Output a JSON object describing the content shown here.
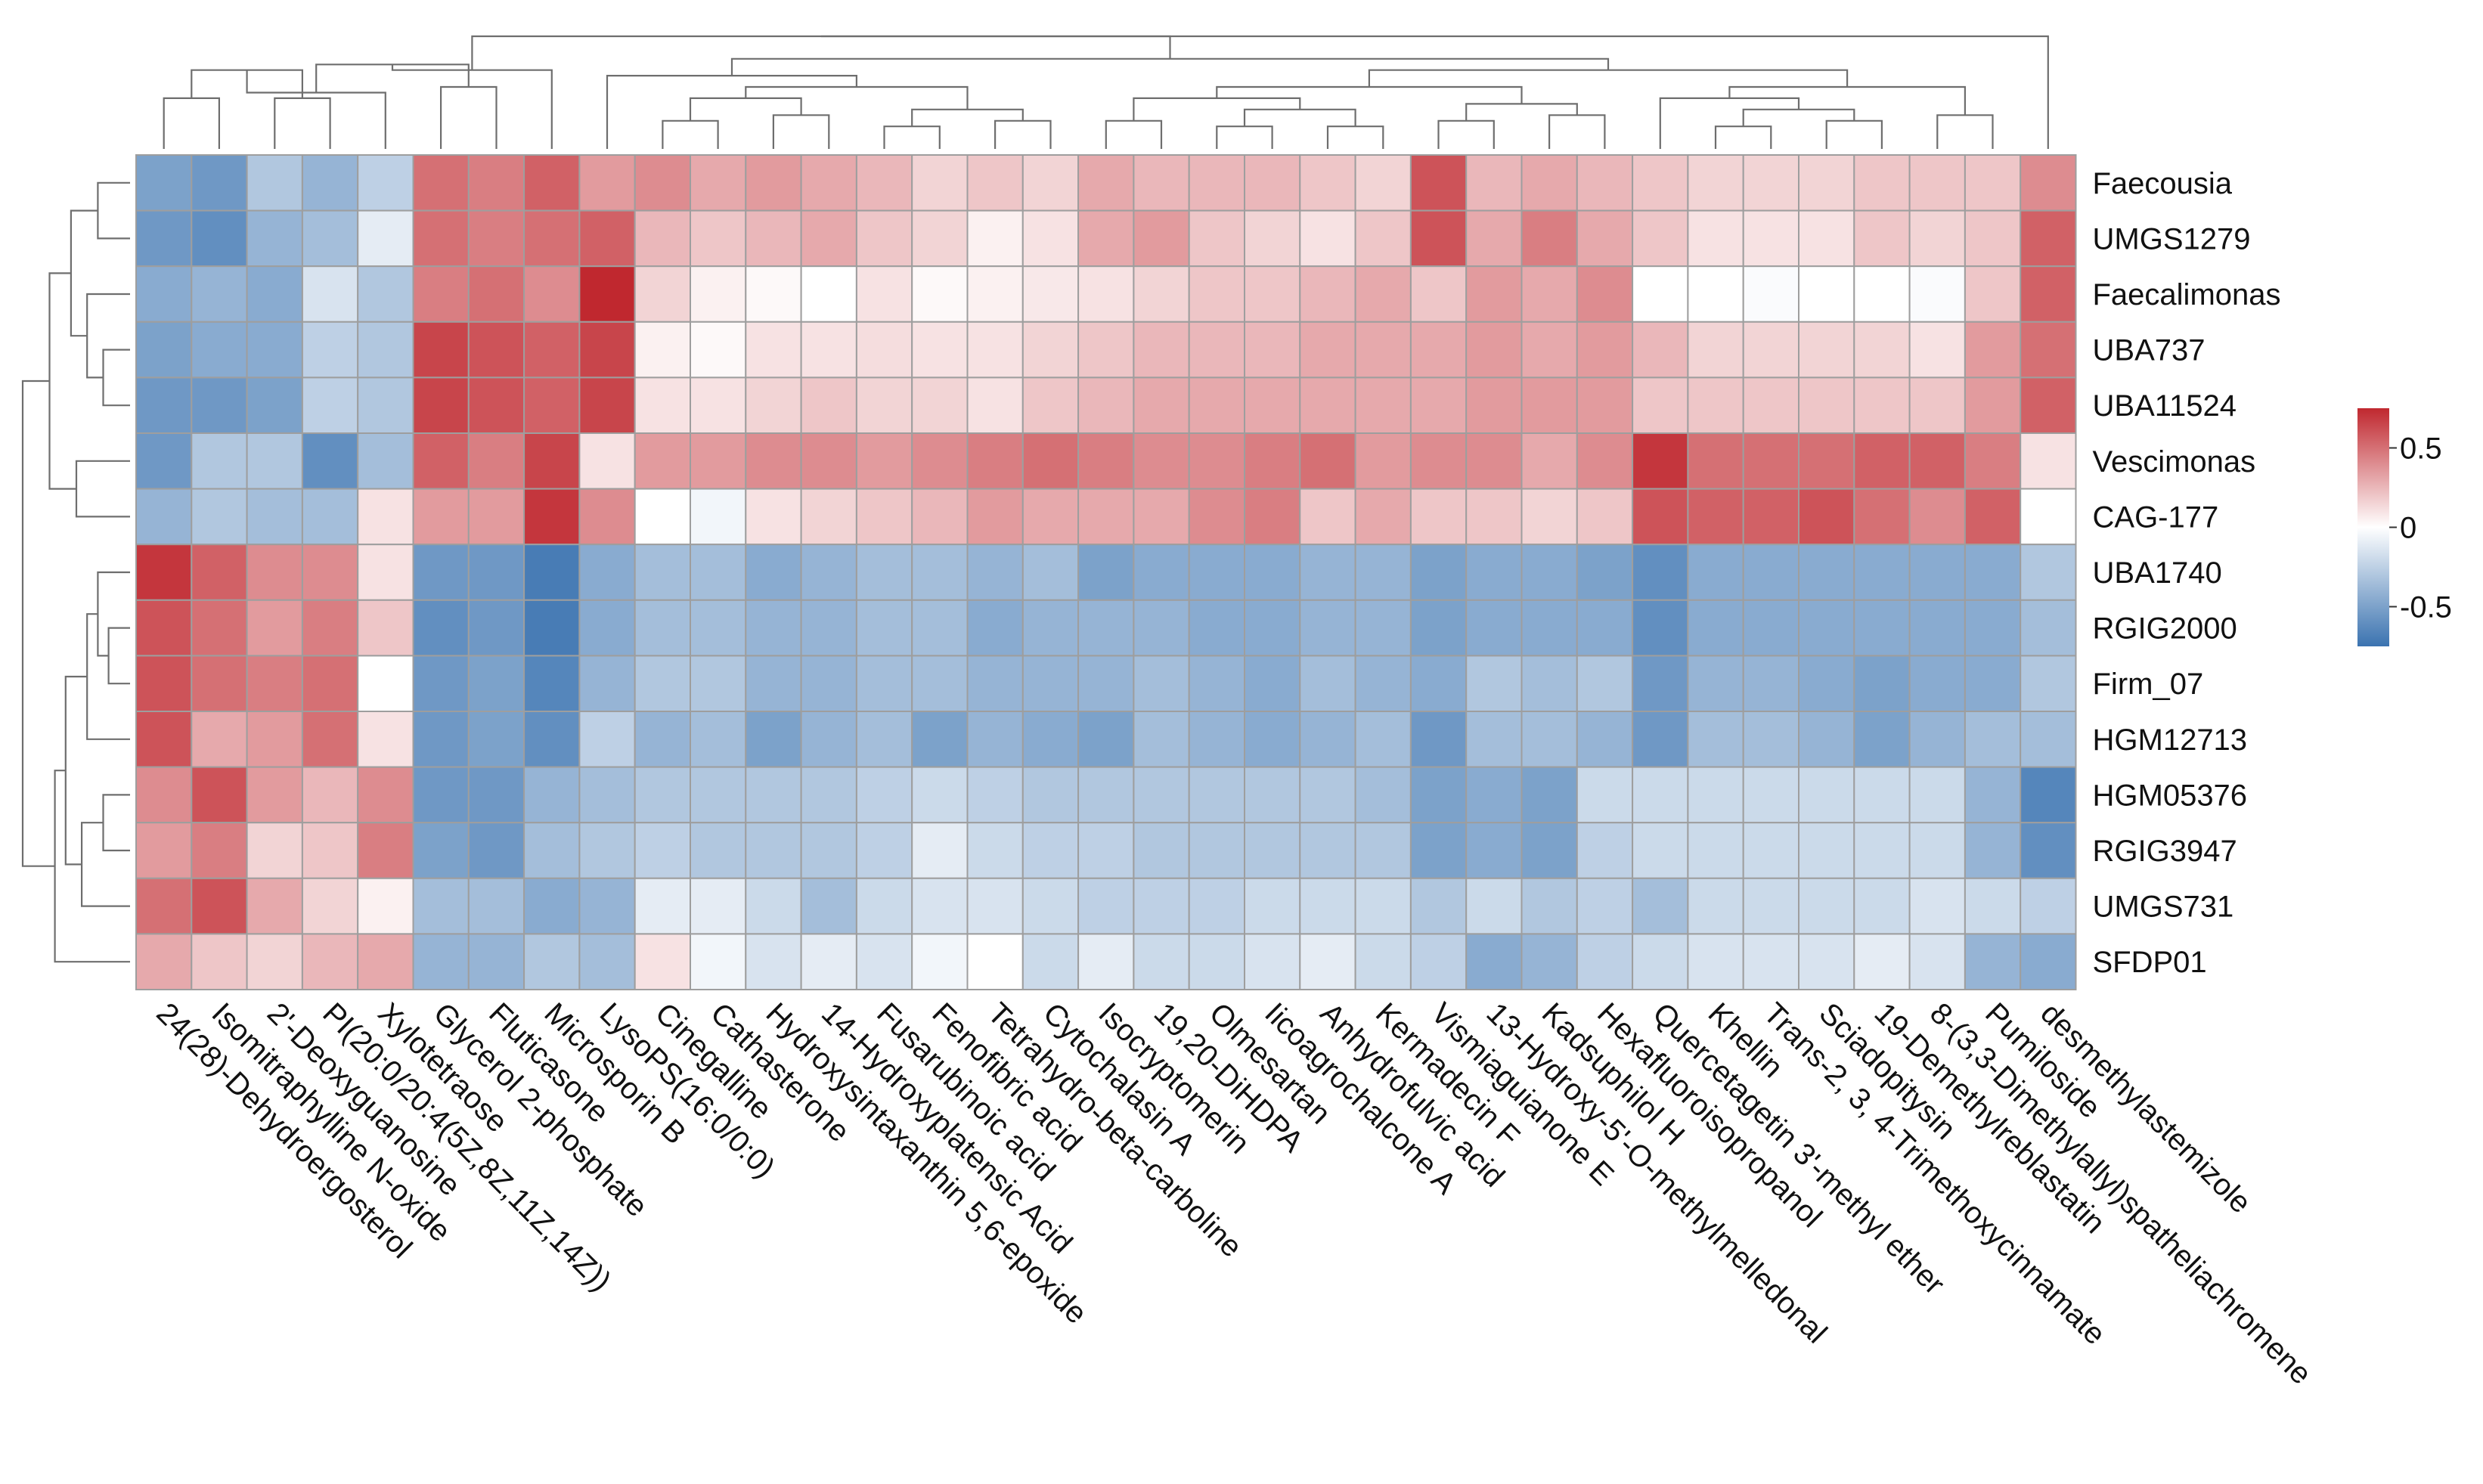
{
  "chart_data": {
    "type": "heatmap",
    "title": "",
    "rows": [
      "Faecousia",
      "UMGS1279",
      "Faecalimonas",
      "UBA737",
      "UBA11524",
      "Vescimonas",
      "CAG-177",
      "UBA1740",
      "RGIG2000",
      "Firm_07",
      "HGM12713",
      "HGM05376",
      "RGIG3947",
      "UMGS731",
      "SFDP01"
    ],
    "columns": [
      "24(28)-Dehydroergosterol",
      "Isomitraphylline N-oxide",
      "2'-Deoxyguanosine",
      "PI(20:0/20:4(5Z,8Z,11Z,14Z))",
      "Xylotetraose",
      "Glycerol 2-phosphate",
      "Fluticasone",
      "Microsporin B",
      "LysoPS(16:0/0:0)",
      "Cinegalline",
      "Cathasterone",
      "Hydroxysintaxanthin 5,6-epoxide",
      "14-Hydroxyplatensic Acid",
      "Fusarubinoic acid",
      "Fenofibric acid",
      "Tetrahydro-beta-carboline",
      "Cytochalasin A",
      "Isocryptomerin",
      "19,20-DiHDPA",
      "Olmesartan",
      "Iicoagrochalcone A",
      "Anhydrofulvic acid",
      "Kermadecin F",
      "Vismiaguianone E",
      "13-Hydroxy-5'-O-methylmelledonal",
      "Kadsuphilol H",
      "Hexafluoroisopropanol",
      "Quercetagetin 3'-methyl ether",
      "Khellin",
      "Trans-2, 3, 4-Trimethoxycinnamate",
      "Sciadopitysin",
      "19-Demethylreblastatin",
      "8-(3,3-Dimethylallyl)spatheliachromene",
      "Pumiloside",
      "desmethylastemizole"
    ],
    "values": [
      [
        -0.5,
        -0.55,
        -0.3,
        -0.4,
        -0.25,
        0.5,
        0.45,
        0.55,
        0.35,
        0.4,
        0.3,
        0.35,
        0.3,
        0.25,
        0.15,
        0.2,
        0.15,
        0.3,
        0.25,
        0.25,
        0.25,
        0.2,
        0.15,
        0.6,
        0.25,
        0.3,
        0.25,
        0.2,
        0.15,
        0.15,
        0.15,
        0.2,
        0.2,
        0.2,
        0.4
      ],
      [
        -0.55,
        -0.6,
        -0.4,
        -0.35,
        -0.1,
        0.5,
        0.45,
        0.5,
        0.55,
        0.25,
        0.2,
        0.25,
        0.3,
        0.2,
        0.15,
        0.05,
        0.1,
        0.3,
        0.35,
        0.2,
        0.15,
        0.1,
        0.2,
        0.6,
        0.3,
        0.45,
        0.3,
        0.2,
        0.1,
        0.1,
        0.1,
        0.2,
        0.15,
        0.2,
        0.55
      ],
      [
        -0.45,
        -0.4,
        -0.45,
        -0.15,
        -0.3,
        0.45,
        0.5,
        0.4,
        0.75,
        0.15,
        0.05,
        0.02,
        0.0,
        0.1,
        0.02,
        0.05,
        0.08,
        0.1,
        0.15,
        0.2,
        0.2,
        0.25,
        0.3,
        0.2,
        0.35,
        0.3,
        0.4,
        0.0,
        0.0,
        -0.02,
        0.0,
        0.0,
        -0.02,
        0.2,
        0.55
      ],
      [
        -0.5,
        -0.45,
        -0.45,
        -0.25,
        -0.3,
        0.65,
        0.6,
        0.55,
        0.65,
        0.05,
        0.02,
        0.1,
        0.1,
        0.12,
        0.1,
        0.1,
        0.15,
        0.2,
        0.25,
        0.25,
        0.25,
        0.3,
        0.3,
        0.3,
        0.35,
        0.3,
        0.35,
        0.25,
        0.15,
        0.15,
        0.15,
        0.15,
        0.1,
        0.35,
        0.5
      ],
      [
        -0.55,
        -0.55,
        -0.5,
        -0.25,
        -0.3,
        0.65,
        0.6,
        0.55,
        0.65,
        0.1,
        0.1,
        0.15,
        0.2,
        0.15,
        0.15,
        0.1,
        0.2,
        0.25,
        0.3,
        0.3,
        0.3,
        0.3,
        0.3,
        0.3,
        0.35,
        0.35,
        0.35,
        0.2,
        0.2,
        0.2,
        0.2,
        0.2,
        0.2,
        0.35,
        0.55
      ],
      [
        -0.55,
        -0.3,
        -0.3,
        -0.6,
        -0.35,
        0.55,
        0.45,
        0.65,
        0.1,
        0.35,
        0.35,
        0.4,
        0.4,
        0.35,
        0.4,
        0.45,
        0.5,
        0.45,
        0.4,
        0.4,
        0.45,
        0.5,
        0.35,
        0.4,
        0.4,
        0.3,
        0.4,
        0.7,
        0.5,
        0.5,
        0.5,
        0.55,
        0.55,
        0.45,
        0.1
      ],
      [
        -0.4,
        -0.3,
        -0.35,
        -0.35,
        0.1,
        0.35,
        0.35,
        0.7,
        0.4,
        0.0,
        -0.05,
        0.1,
        0.15,
        0.2,
        0.25,
        0.35,
        0.3,
        0.3,
        0.3,
        0.4,
        0.45,
        0.2,
        0.3,
        0.2,
        0.2,
        0.15,
        0.2,
        0.6,
        0.55,
        0.55,
        0.6,
        0.5,
        0.4,
        0.55,
        0.0
      ],
      [
        0.7,
        0.55,
        0.4,
        0.4,
        0.1,
        -0.55,
        -0.55,
        -0.7,
        -0.45,
        -0.35,
        -0.35,
        -0.45,
        -0.4,
        -0.35,
        -0.35,
        -0.4,
        -0.35,
        -0.5,
        -0.45,
        -0.45,
        -0.45,
        -0.4,
        -0.4,
        -0.5,
        -0.45,
        -0.45,
        -0.5,
        -0.6,
        -0.45,
        -0.45,
        -0.45,
        -0.45,
        -0.45,
        -0.45,
        -0.3
      ],
      [
        0.6,
        0.5,
        0.35,
        0.45,
        0.2,
        -0.6,
        -0.55,
        -0.7,
        -0.45,
        -0.35,
        -0.35,
        -0.4,
        -0.4,
        -0.35,
        -0.35,
        -0.45,
        -0.4,
        -0.4,
        -0.4,
        -0.45,
        -0.45,
        -0.4,
        -0.4,
        -0.5,
        -0.45,
        -0.45,
        -0.45,
        -0.6,
        -0.45,
        -0.45,
        -0.45,
        -0.45,
        -0.45,
        -0.45,
        -0.35
      ],
      [
        0.6,
        0.5,
        0.45,
        0.5,
        0.0,
        -0.55,
        -0.5,
        -0.65,
        -0.4,
        -0.3,
        -0.3,
        -0.4,
        -0.4,
        -0.35,
        -0.35,
        -0.4,
        -0.4,
        -0.4,
        -0.35,
        -0.4,
        -0.45,
        -0.35,
        -0.4,
        -0.45,
        -0.3,
        -0.35,
        -0.3,
        -0.55,
        -0.4,
        -0.4,
        -0.45,
        -0.5,
        -0.45,
        -0.45,
        -0.3
      ],
      [
        0.6,
        0.3,
        0.35,
        0.5,
        0.1,
        -0.55,
        -0.5,
        -0.6,
        -0.25,
        -0.4,
        -0.35,
        -0.5,
        -0.4,
        -0.35,
        -0.5,
        -0.4,
        -0.45,
        -0.5,
        -0.35,
        -0.4,
        -0.45,
        -0.4,
        -0.35,
        -0.55,
        -0.35,
        -0.35,
        -0.4,
        -0.55,
        -0.35,
        -0.35,
        -0.4,
        -0.5,
        -0.4,
        -0.35,
        -0.35
      ],
      [
        0.4,
        0.6,
        0.35,
        0.25,
        0.4,
        -0.55,
        -0.55,
        -0.4,
        -0.35,
        -0.3,
        -0.3,
        -0.3,
        -0.3,
        -0.25,
        -0.2,
        -0.25,
        -0.3,
        -0.3,
        -0.3,
        -0.3,
        -0.3,
        -0.3,
        -0.35,
        -0.5,
        -0.45,
        -0.5,
        -0.2,
        -0.2,
        -0.2,
        -0.2,
        -0.2,
        -0.2,
        -0.2,
        -0.4,
        -0.65
      ],
      [
        0.35,
        0.45,
        0.15,
        0.2,
        0.45,
        -0.5,
        -0.55,
        -0.35,
        -0.3,
        -0.25,
        -0.3,
        -0.3,
        -0.3,
        -0.25,
        -0.1,
        -0.2,
        -0.25,
        -0.25,
        -0.3,
        -0.3,
        -0.3,
        -0.3,
        -0.3,
        -0.5,
        -0.45,
        -0.5,
        -0.25,
        -0.2,
        -0.2,
        -0.2,
        -0.2,
        -0.2,
        -0.2,
        -0.4,
        -0.6
      ],
      [
        0.5,
        0.6,
        0.3,
        0.15,
        0.05,
        -0.35,
        -0.35,
        -0.45,
        -0.4,
        -0.1,
        -0.1,
        -0.2,
        -0.35,
        -0.2,
        -0.15,
        -0.15,
        -0.2,
        -0.25,
        -0.25,
        -0.25,
        -0.2,
        -0.2,
        -0.2,
        -0.3,
        -0.2,
        -0.3,
        -0.25,
        -0.35,
        -0.2,
        -0.2,
        -0.2,
        -0.2,
        -0.15,
        -0.2,
        -0.25
      ],
      [
        0.3,
        0.2,
        0.15,
        0.25,
        0.3,
        -0.4,
        -0.4,
        -0.3,
        -0.35,
        0.1,
        -0.05,
        -0.15,
        -0.1,
        -0.15,
        -0.05,
        0.0,
        -0.2,
        -0.1,
        -0.2,
        -0.2,
        -0.15,
        -0.1,
        -0.2,
        -0.25,
        -0.45,
        -0.4,
        -0.25,
        -0.2,
        -0.15,
        -0.15,
        -0.15,
        -0.1,
        -0.15,
        -0.4,
        -0.45
      ]
    ],
    "legend": {
      "position": "right",
      "ticks": [
        "0.5",
        "0",
        "-0.5"
      ],
      "tick_values": [
        0.5,
        0,
        -0.5
      ],
      "range": [
        -0.75,
        0.75
      ],
      "colors": {
        "low": "#3B73B0",
        "mid": "#FFFFFF",
        "high": "#C0282F"
      }
    },
    "grid_color": "#9E9E9E",
    "tree_color": "#6E6E6E"
  }
}
